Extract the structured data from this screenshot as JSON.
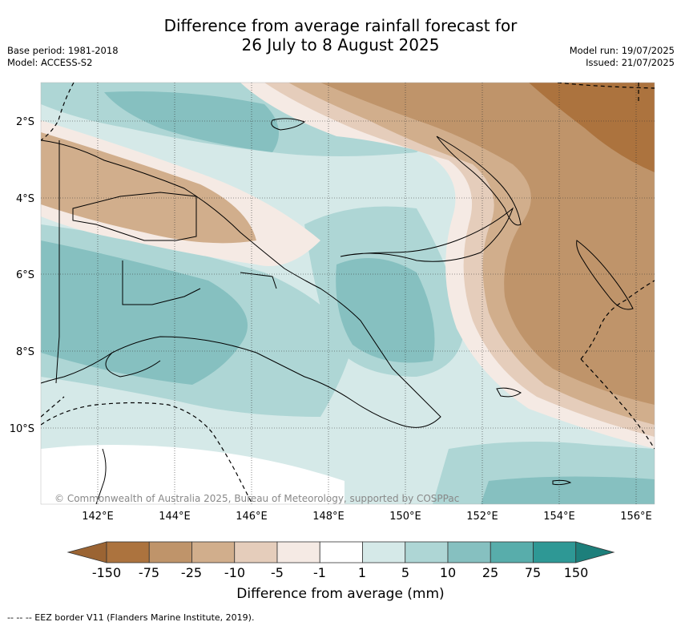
{
  "header": {
    "title_line1": "Difference from average rainfall forecast for",
    "title_line2": "26 July to 8 August 2025",
    "base_period": "Base period: 1981-2018",
    "model": "Model: ACCESS-S2",
    "model_run": "Model run: 19/07/2025",
    "issued": "Issued: 21/07/2025"
  },
  "map": {
    "lat_ticks": [
      "2°S",
      "4°S",
      "6°S",
      "8°S",
      "10°S"
    ],
    "lon_ticks": [
      "142°E",
      "144°E",
      "146°E",
      "148°E",
      "150°E",
      "152°E",
      "154°E",
      "156°E"
    ],
    "copyright": "© Commonwealth of Australia 2025, Bureau of Meteorology, supported by COSPPac"
  },
  "colorbar": {
    "labels": [
      "-150",
      "-75",
      "-25",
      "-10",
      "-5",
      "-1",
      "1",
      "5",
      "10",
      "25",
      "75",
      "150"
    ],
    "colors": [
      "#9b6433",
      "#ac733e",
      "#bf946a",
      "#d1ae8c",
      "#e5cdbb",
      "#f5eae4",
      "#ffffff",
      "#d5e9e8",
      "#aed6d5",
      "#86c0c0",
      "#58adab",
      "#2e9895",
      "#1d7f7b"
    ],
    "xlabel": "Difference from average (mm)"
  },
  "footnote": "-- -- -- EEZ border V11 (Flanders Marine Institute, 2019)."
}
